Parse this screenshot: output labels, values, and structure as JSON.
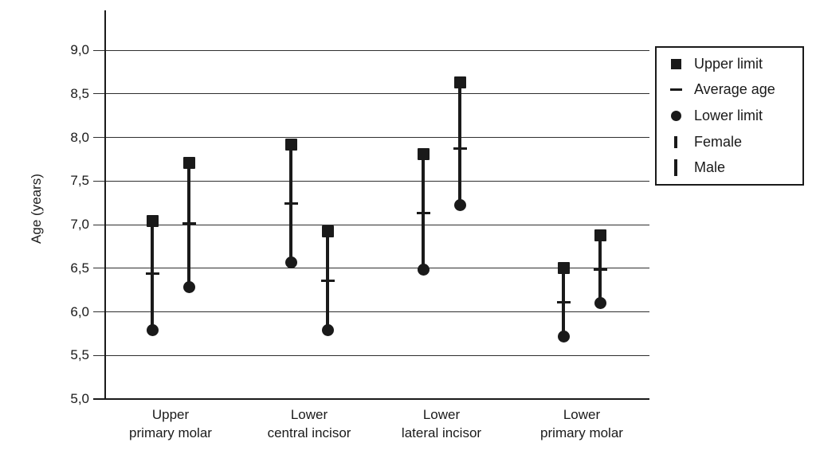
{
  "chart_data": {
    "type": "scatter",
    "variant": "vertical-range-stems",
    "title": "",
    "xlabel": "",
    "ylabel": "Age (years)",
    "ylim": [
      5.0,
      9.0
    ],
    "ytick_interval": 0.5,
    "grid": "horizontal",
    "legend_position": "top-right-outside",
    "decimal_separator": ",",
    "background_color": "#ffffff",
    "ink_color": "#1a1a1a",
    "yticks": [
      {
        "value": 5.0,
        "label": "5,0"
      },
      {
        "value": 5.5,
        "label": "5,5"
      },
      {
        "value": 6.0,
        "label": "6,0"
      },
      {
        "value": 6.5,
        "label": "6,5"
      },
      {
        "value": 7.0,
        "label": "7,0"
      },
      {
        "value": 7.5,
        "label": "7,5"
      },
      {
        "value": 8.0,
        "label": "8,0"
      },
      {
        "value": 8.5,
        "label": "8,5"
      },
      {
        "value": 9.0,
        "label": "9,0"
      }
    ],
    "categories": [
      {
        "label_lines": [
          "Upper",
          "primary molar"
        ]
      },
      {
        "label_lines": [
          "Lower",
          "central incisor"
        ]
      },
      {
        "label_lines": [
          "Lower",
          "lateral incisor"
        ]
      },
      {
        "label_lines": [
          "Lower",
          "primary molar"
        ]
      }
    ],
    "series": [
      {
        "name": "Female",
        "data": [
          {
            "upper": 7.04,
            "average": 6.44,
            "lower": 5.79
          },
          {
            "upper": 7.92,
            "average": 7.24,
            "lower": 6.57
          },
          {
            "upper": 7.81,
            "average": 7.13,
            "lower": 6.48
          },
          {
            "upper": 6.5,
            "average": 6.11,
            "lower": 5.72
          }
        ]
      },
      {
        "name": "Male",
        "data": [
          {
            "upper": 7.71,
            "average": 7.01,
            "lower": 6.28
          },
          {
            "upper": 6.92,
            "average": 6.36,
            "lower": 5.79
          },
          {
            "upper": 8.63,
            "average": 7.87,
            "lower": 7.22
          },
          {
            "upper": 6.88,
            "average": 6.48,
            "lower": 6.1
          }
        ]
      }
    ],
    "legend": [
      {
        "glyph": "square",
        "label": "Upper limit"
      },
      {
        "glyph": "dash",
        "label": "Average age"
      },
      {
        "glyph": "circle",
        "label": "Lower limit"
      },
      {
        "glyph": "bar-short",
        "label": "Female"
      },
      {
        "glyph": "bar-tall",
        "label": "Male"
      }
    ]
  }
}
